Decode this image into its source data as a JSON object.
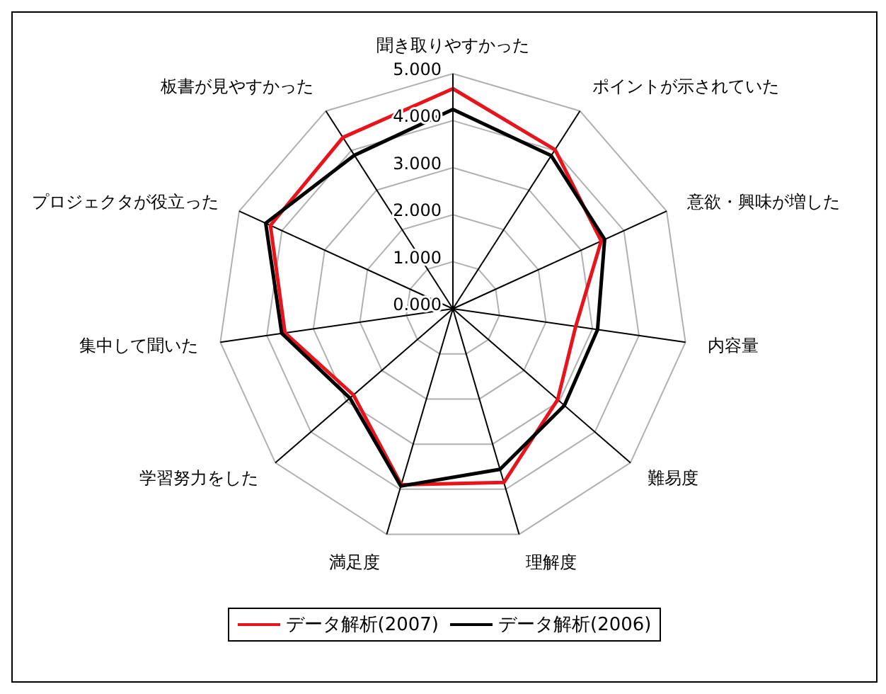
{
  "chart_data": {
    "type": "radar",
    "categories": [
      "聞き取りやすかった",
      "ポイントが示されていた",
      "意欲・興味が増した",
      "内容量",
      "難易度",
      "理解度",
      "満足度",
      "学習努力をした",
      "集中して聞いた",
      "プロジェクタが役立った",
      "板書が見やすかった"
    ],
    "series": [
      {
        "name": "データ解析(2007)",
        "color": "#e8141c",
        "values": [
          4.68,
          4.02,
          3.47,
          2.64,
          2.95,
          3.85,
          3.9,
          2.8,
          3.61,
          4.27,
          4.33
        ]
      },
      {
        "name": "データ解析(2006)",
        "color": "#000000",
        "values": [
          4.24,
          3.87,
          3.55,
          3.11,
          3.14,
          3.56,
          3.93,
          2.9,
          3.68,
          4.38,
          3.88
        ]
      }
    ],
    "ylim": [
      0,
      5
    ],
    "yticks": [
      {
        "value": 0,
        "label": "0.000"
      },
      {
        "value": 1,
        "label": "1.000"
      },
      {
        "value": 2,
        "label": "2.000"
      },
      {
        "value": 3,
        "label": "3.000"
      },
      {
        "value": 4,
        "label": "4.000"
      },
      {
        "value": 5,
        "label": "5.000"
      }
    ],
    "grid": true,
    "legend": "bottom",
    "marker": "none",
    "line_style": "solid"
  }
}
